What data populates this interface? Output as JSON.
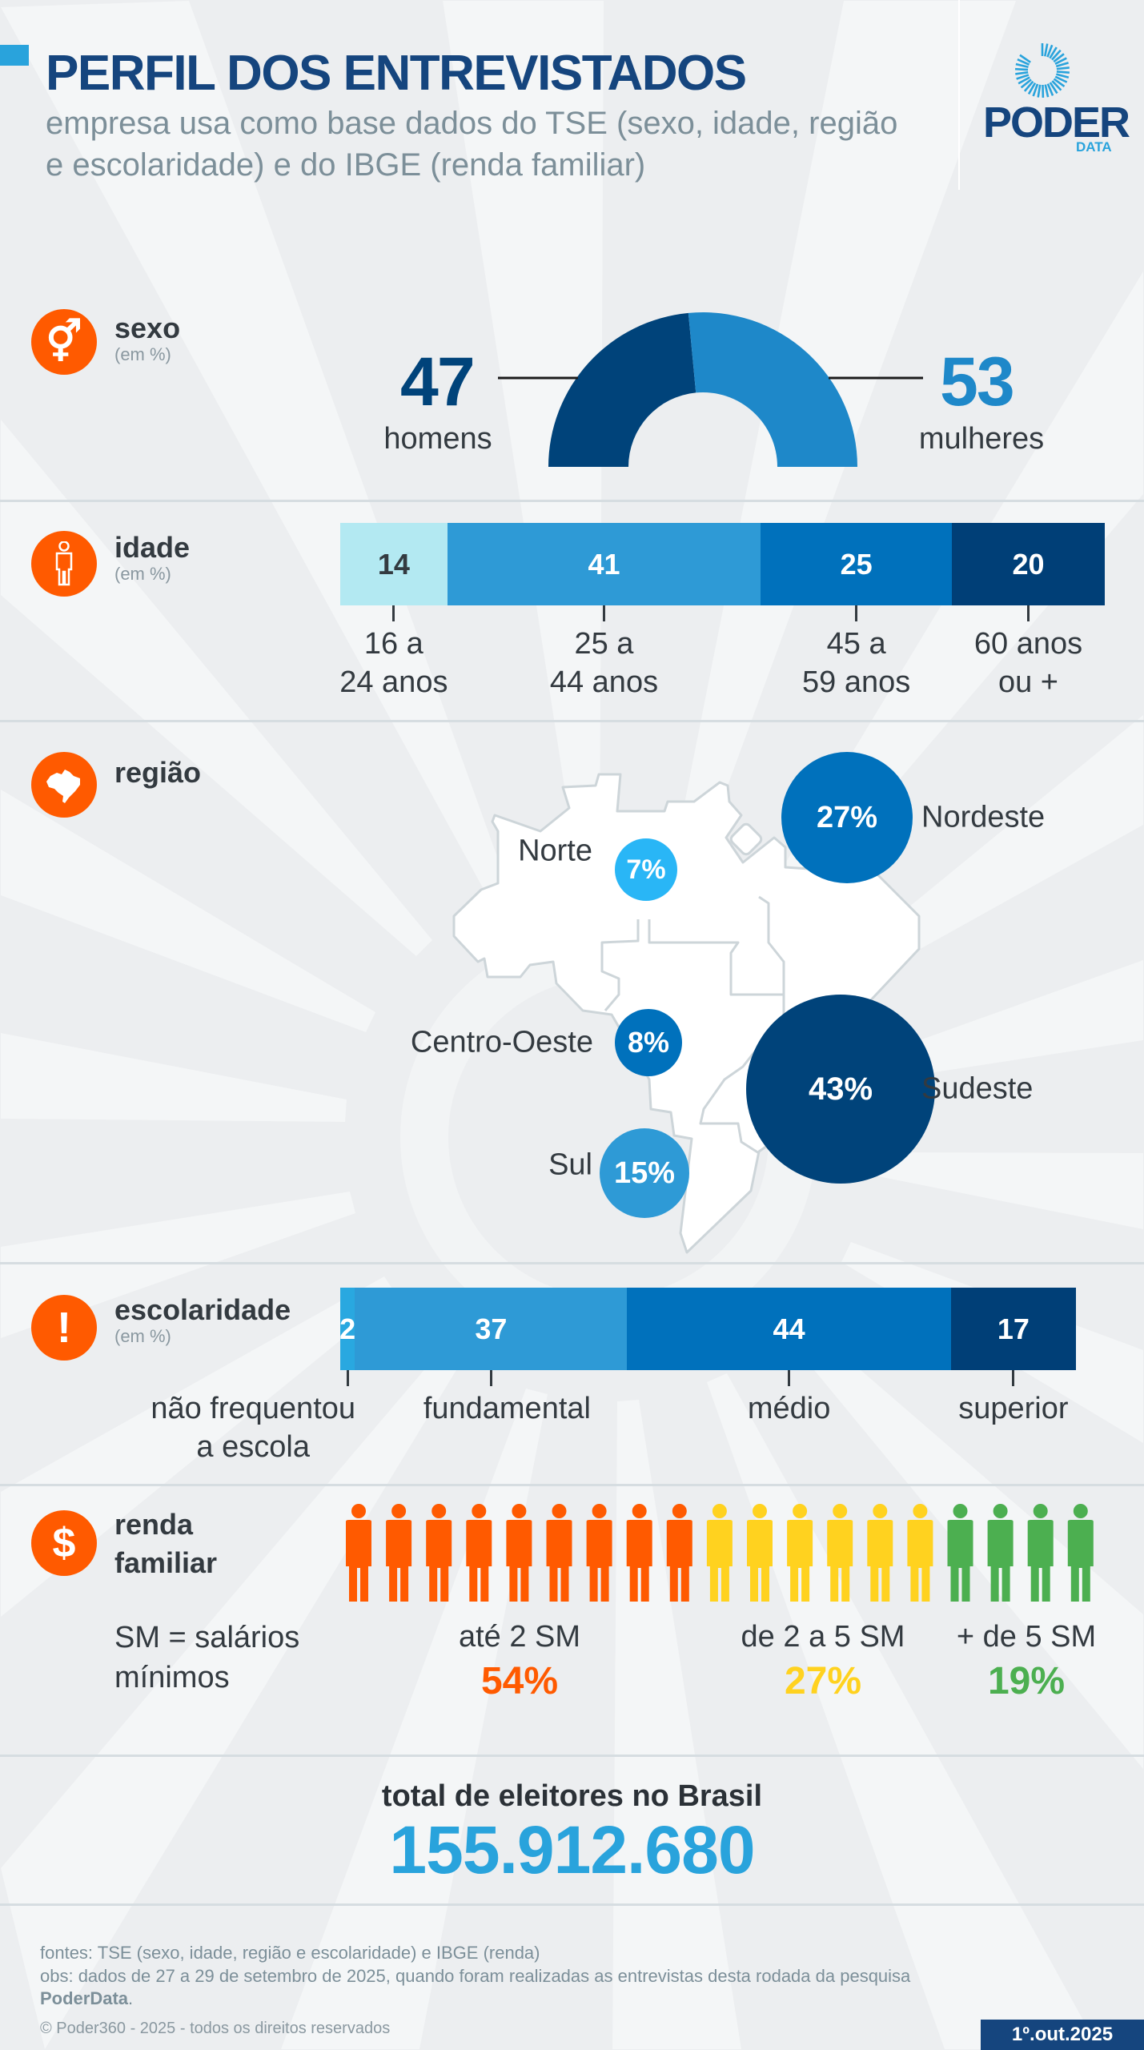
{
  "header": {
    "title": "PERFIL DOS ENTREVISTADOS",
    "subtitle_line1": "empresa usa como base dados do TSE (sexo, idade, região",
    "subtitle_line2": "e escolaridade) e do IBGE (renda familiar)",
    "logo_word": "PODER",
    "logo_sub": "DATA",
    "accent_color": "#29a3dc",
    "title_color": "#15457e"
  },
  "sexo": {
    "label": "sexo",
    "unit": "(em %)",
    "icon": "gender-icon",
    "homens": {
      "value": 47,
      "label": "homens",
      "color": "#00437a"
    },
    "mulheres": {
      "value": 53,
      "label": "mulheres",
      "color": "#1e88c9"
    }
  },
  "idade": {
    "label": "idade",
    "unit": "(em %)",
    "icon": "person-icon",
    "segments": [
      {
        "value": 14,
        "label1": "16 a",
        "label2": "24 anos",
        "color": "#b3e9f2",
        "text": "#333a40"
      },
      {
        "value": 41,
        "label1": "25 a",
        "label2": "44 anos",
        "color": "#2e9ad6",
        "text": "#ffffff"
      },
      {
        "value": 25,
        "label1": "45 a",
        "label2": "59 anos",
        "color": "#0071bc",
        "text": "#ffffff"
      },
      {
        "value": 20,
        "label1": "60 anos",
        "label2": "ou +",
        "color": "#003f77",
        "text": "#ffffff"
      }
    ]
  },
  "regiao": {
    "label": "região",
    "icon": "brazil-map-icon",
    "regions": [
      {
        "name": "Norte",
        "value": "7%",
        "color": "#29b6f6"
      },
      {
        "name": "Nordeste",
        "value": "27%",
        "color": "#0071bc"
      },
      {
        "name": "Centro-Oeste",
        "value": "8%",
        "color": "#0071bc"
      },
      {
        "name": "Sudeste",
        "value": "43%",
        "color": "#00437a"
      },
      {
        "name": "Sul",
        "value": "15%",
        "color": "#2e9ad6"
      }
    ]
  },
  "escolaridade": {
    "label": "escolaridade",
    "unit": "(em %)",
    "icon": "exclamation-icon",
    "segments": [
      {
        "value": 2,
        "label1": "não frequentou",
        "label2": "a escola",
        "color": "#29a8e0"
      },
      {
        "value": 37,
        "label1": "fundamental",
        "label2": "",
        "color": "#2e9ad6"
      },
      {
        "value": 44,
        "label1": "médio",
        "label2": "",
        "color": "#0071bc"
      },
      {
        "value": 17,
        "label1": "superior",
        "label2": "",
        "color": "#003f77"
      }
    ]
  },
  "renda": {
    "label1": "renda",
    "label2": "familiar",
    "icon": "dollar-icon",
    "note1": "SM = salários",
    "note2": "mínimos",
    "groups": [
      {
        "label": "até 2 SM",
        "value": "54%",
        "color": "#ff5a00",
        "figures": 9
      },
      {
        "label": "de 2 a 5 SM",
        "value": "27%",
        "color": "#ffd21f",
        "figures": 6
      },
      {
        "label": "+ de 5 SM",
        "value": "19%",
        "color": "#4caf50",
        "figures": 4
      }
    ]
  },
  "total": {
    "label": "total de eleitores no Brasil",
    "value": "155.912.680",
    "color": "#29a3dc"
  },
  "footer": {
    "fontes": "fontes: TSE (sexo, idade, região e escolaridade) e IBGE (renda)",
    "obs": "obs: dados de 27 a 29 de setembro de 2025, quando foram realizadas as entrevistas desta rodada da pesquisa",
    "obs_brand": "PoderData",
    "copyright": "© Poder360 - 2025 - todos os direitos reservados",
    "date": "1º.out.2025"
  }
}
